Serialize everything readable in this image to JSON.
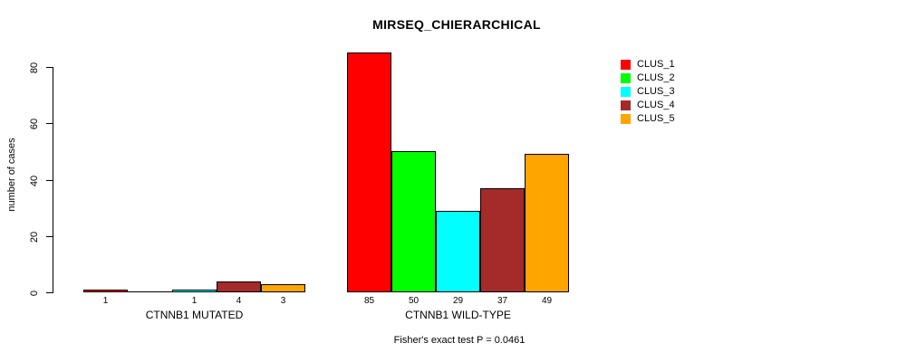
{
  "chart_data": {
    "type": "bar",
    "title": "MIRSEQ_CHIERARCHICAL",
    "ylabel": "number of cases",
    "annotation": "Fisher's exact test P = 0.0461",
    "ylim": [
      0,
      80
    ],
    "yticks": [
      0,
      20,
      40,
      60,
      80
    ],
    "grid": false,
    "legend_position": "top-right",
    "background_color": "#FFFFFF",
    "axis_color": "#000000",
    "categories": [
      "CTNNB1 MUTATED",
      "CTNNB1 WILD-TYPE"
    ],
    "series": [
      {
        "name": "CLUS_1",
        "color": "#FF0000",
        "values": [
          1,
          85
        ]
      },
      {
        "name": "CLUS_2",
        "color": "#00FF00",
        "values": [
          0,
          50
        ]
      },
      {
        "name": "CLUS_3",
        "color": "#00FFFF",
        "values": [
          1,
          29
        ]
      },
      {
        "name": "CLUS_4",
        "color": "#A52A2A",
        "values": [
          4,
          37
        ]
      },
      {
        "name": "CLUS_5",
        "color": "#FFA500",
        "values": [
          3,
          49
        ]
      }
    ],
    "bar_value_labels": [
      [
        "1",
        "",
        "1",
        "4",
        "3"
      ],
      [
        "85",
        "50",
        "29",
        "37",
        "49"
      ]
    ]
  }
}
